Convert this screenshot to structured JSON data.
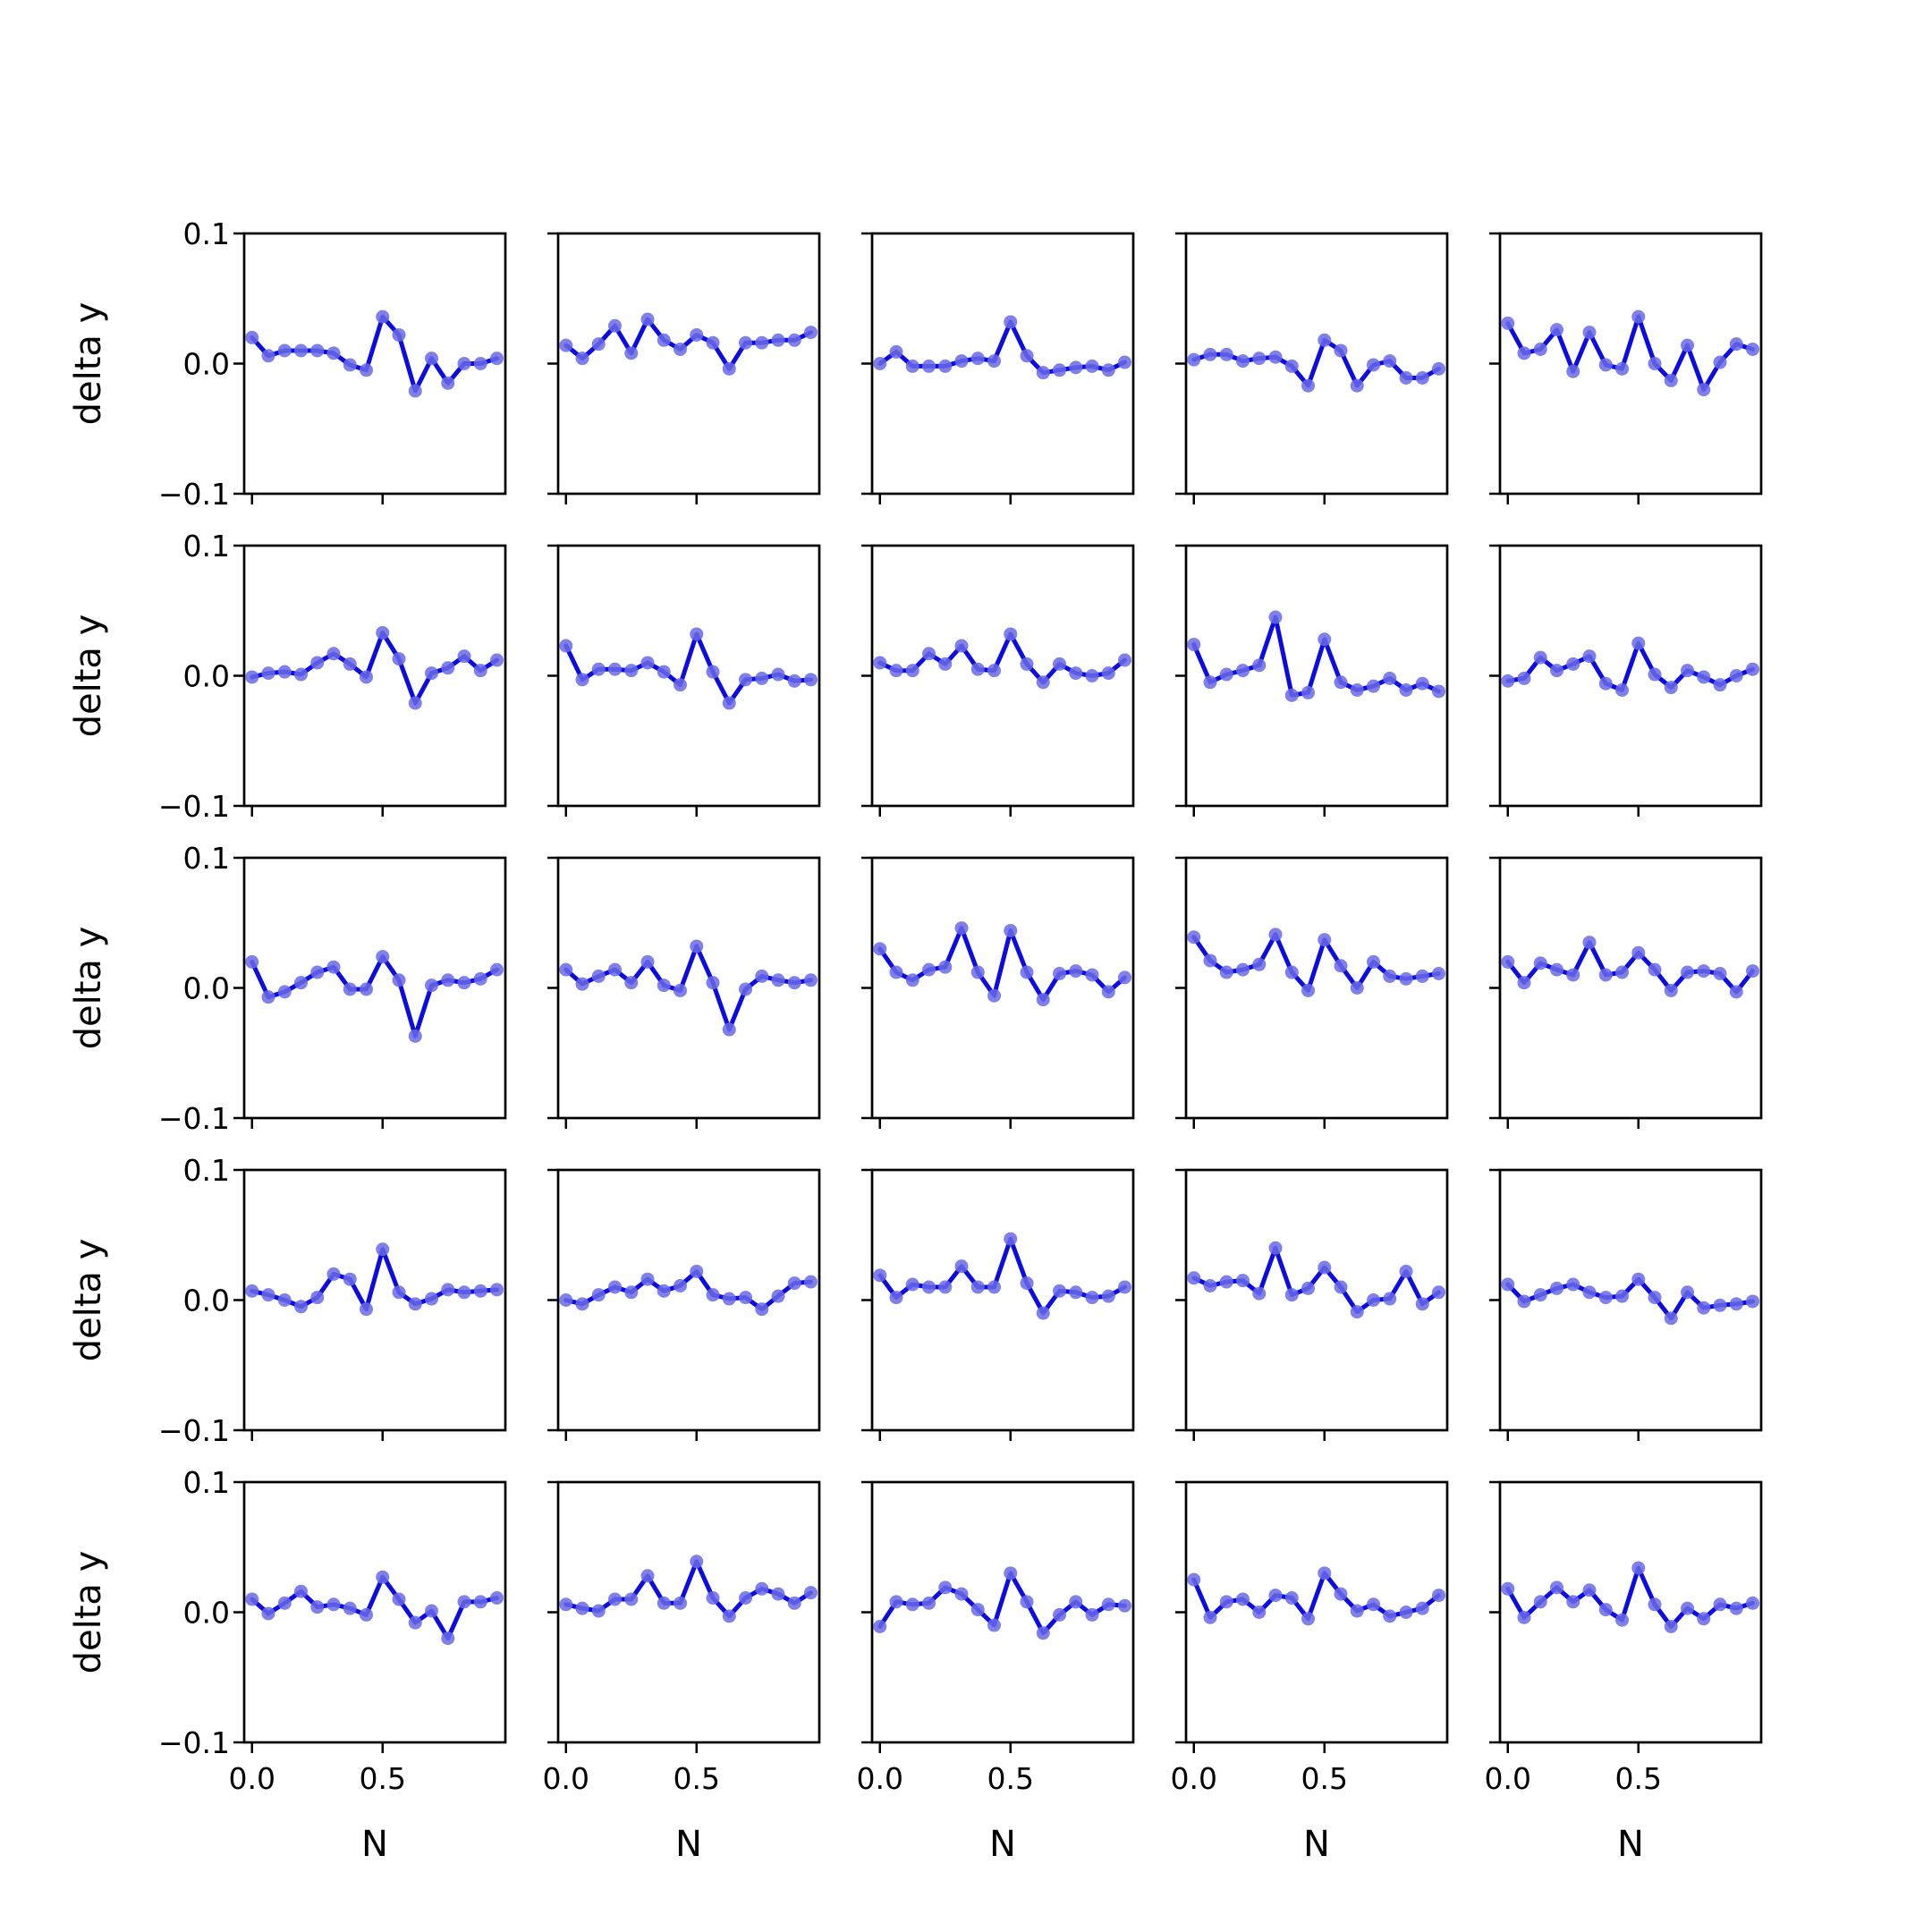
{
  "chart_data": {
    "type": "line",
    "layout": {
      "rows": 5,
      "cols": 5
    },
    "xlabel": "N",
    "ylabel": "delta y",
    "x_ticks": [
      0.0,
      0.5
    ],
    "x_tick_labels": [
      "0.0",
      "0.5"
    ],
    "y_ticks": [
      0.1,
      0.0,
      -0.1
    ],
    "y_tick_labels": [
      "0.1",
      "0.0",
      "−0.1"
    ],
    "xlim": [
      -0.03,
      0.97
    ],
    "ylim": [
      -0.1,
      0.1
    ],
    "x": [
      0.0,
      0.0625,
      0.125,
      0.1875,
      0.25,
      0.3125,
      0.375,
      0.4375,
      0.5,
      0.5625,
      0.625,
      0.6875,
      0.75,
      0.8125,
      0.875,
      0.9375
    ],
    "colors": {
      "line": "#0c0ce0",
      "marker": "#6a6ae8"
    },
    "panels": [
      [
        0.02,
        0.006,
        0.01,
        0.01,
        0.01,
        0.008,
        -0.001,
        -0.005,
        0.036,
        0.022,
        -0.021,
        0.004,
        -0.015,
        0.0,
        0.0,
        0.004
      ],
      [
        0.014,
        0.004,
        0.015,
        0.029,
        0.008,
        0.034,
        0.018,
        0.011,
        0.022,
        0.016,
        -0.004,
        0.016,
        0.016,
        0.018,
        0.018,
        0.024
      ],
      [
        0.0,
        0.009,
        -0.002,
        -0.002,
        -0.002,
        0.002,
        0.004,
        0.002,
        0.032,
        0.006,
        -0.007,
        -0.005,
        -0.003,
        -0.002,
        -0.005,
        0.001
      ],
      [
        0.003,
        0.007,
        0.007,
        0.002,
        0.004,
        0.005,
        -0.002,
        -0.017,
        0.018,
        0.01,
        -0.017,
        -0.001,
        0.002,
        -0.011,
        -0.011,
        -0.004
      ],
      [
        0.031,
        0.008,
        0.011,
        0.026,
        -0.006,
        0.024,
        -0.001,
        -0.004,
        0.036,
        0.0,
        -0.013,
        0.014,
        -0.02,
        0.001,
        0.015,
        0.011
      ],
      [
        -0.001,
        0.002,
        0.003,
        0.001,
        0.01,
        0.017,
        0.009,
        -0.001,
        0.033,
        0.013,
        -0.021,
        0.002,
        0.006,
        0.015,
        0.004,
        0.012
      ],
      [
        0.023,
        -0.003,
        0.005,
        0.005,
        0.004,
        0.01,
        0.003,
        -0.007,
        0.032,
        0.003,
        -0.021,
        -0.003,
        -0.002,
        0.001,
        -0.004,
        -0.003
      ],
      [
        0.01,
        0.004,
        0.004,
        0.017,
        0.009,
        0.023,
        0.005,
        0.004,
        0.032,
        0.009,
        -0.005,
        0.009,
        0.002,
        0.0,
        0.002,
        0.012
      ],
      [
        0.024,
        -0.005,
        0.001,
        0.004,
        0.008,
        0.045,
        -0.015,
        -0.013,
        0.028,
        -0.005,
        -0.011,
        -0.008,
        -0.002,
        -0.011,
        -0.006,
        -0.012
      ],
      [
        -0.004,
        -0.002,
        0.014,
        0.004,
        0.009,
        0.015,
        -0.006,
        -0.011,
        0.025,
        0.001,
        -0.009,
        0.004,
        -0.001,
        -0.007,
        0.0,
        0.005
      ],
      [
        0.02,
        -0.007,
        -0.003,
        0.004,
        0.012,
        0.016,
        -0.001,
        -0.001,
        0.024,
        0.006,
        -0.037,
        0.002,
        0.006,
        0.004,
        0.007,
        0.014
      ],
      [
        0.014,
        0.003,
        0.009,
        0.014,
        0.004,
        0.02,
        0.002,
        -0.002,
        0.032,
        0.004,
        -0.032,
        -0.001,
        0.009,
        0.006,
        0.004,
        0.006
      ],
      [
        0.03,
        0.012,
        0.006,
        0.014,
        0.016,
        0.046,
        0.012,
        -0.006,
        0.044,
        0.012,
        -0.009,
        0.011,
        0.013,
        0.01,
        -0.003,
        0.008
      ],
      [
        0.039,
        0.021,
        0.012,
        0.014,
        0.018,
        0.041,
        0.012,
        -0.002,
        0.037,
        0.017,
        0.0,
        0.02,
        0.009,
        0.007,
        0.009,
        0.011
      ],
      [
        0.02,
        0.004,
        0.019,
        0.014,
        0.01,
        0.035,
        0.01,
        0.012,
        0.027,
        0.014,
        -0.002,
        0.012,
        0.013,
        0.011,
        -0.003,
        0.013
      ],
      [
        0.007,
        0.004,
        0.0,
        -0.005,
        0.002,
        0.02,
        0.016,
        -0.007,
        0.039,
        0.006,
        -0.003,
        0.001,
        0.008,
        0.006,
        0.007,
        0.008
      ],
      [
        0.0,
        -0.003,
        0.004,
        0.01,
        0.006,
        0.016,
        0.007,
        0.011,
        0.022,
        0.004,
        0.001,
        0.002,
        -0.007,
        0.003,
        0.013,
        0.014
      ],
      [
        0.019,
        0.002,
        0.012,
        0.01,
        0.01,
        0.026,
        0.01,
        0.01,
        0.047,
        0.013,
        -0.01,
        0.007,
        0.006,
        0.002,
        0.003,
        0.01
      ],
      [
        0.017,
        0.011,
        0.014,
        0.015,
        0.005,
        0.04,
        0.004,
        0.009,
        0.025,
        0.01,
        -0.009,
        0.0,
        0.001,
        0.022,
        -0.003,
        0.006
      ],
      [
        0.012,
        -0.001,
        0.004,
        0.009,
        0.012,
        0.006,
        0.002,
        0.003,
        0.016,
        0.002,
        -0.014,
        0.006,
        -0.006,
        -0.004,
        -0.003,
        -0.001
      ],
      [
        0.01,
        -0.001,
        0.007,
        0.016,
        0.004,
        0.006,
        0.003,
        -0.002,
        0.027,
        0.01,
        -0.008,
        0.001,
        -0.02,
        0.008,
        0.008,
        0.011
      ],
      [
        0.006,
        0.003,
        0.001,
        0.01,
        0.01,
        0.028,
        0.007,
        0.007,
        0.039,
        0.011,
        -0.003,
        0.011,
        0.018,
        0.014,
        0.007,
        0.015
      ],
      [
        -0.011,
        0.008,
        0.006,
        0.007,
        0.019,
        0.014,
        0.002,
        -0.01,
        0.03,
        0.008,
        -0.016,
        -0.002,
        0.008,
        -0.002,
        0.006,
        0.005
      ],
      [
        0.025,
        -0.004,
        0.008,
        0.01,
        0.0,
        0.013,
        0.011,
        -0.005,
        0.03,
        0.014,
        0.001,
        0.006,
        -0.003,
        0.0,
        0.003,
        0.013
      ],
      [
        0.018,
        -0.004,
        0.008,
        0.019,
        0.008,
        0.017,
        0.002,
        -0.006,
        0.034,
        0.006,
        -0.011,
        0.003,
        -0.005,
        0.006,
        0.003,
        0.007
      ]
    ]
  }
}
